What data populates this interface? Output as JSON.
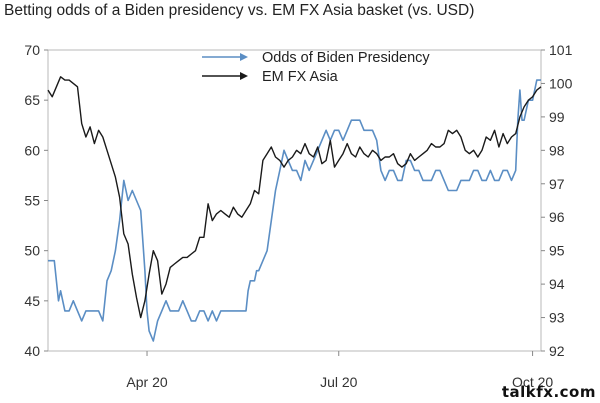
{
  "title": "Betting odds of a Biden presidency vs. EM FX Asia basket (vs. USD)",
  "watermark": "talkfx.com",
  "chart_data": {
    "type": "line",
    "title": "Betting odds of a Biden presidency vs. EM FX Asia basket (vs. USD)",
    "x_ticks": [
      {
        "label": "Apr 20",
        "day": 47
      },
      {
        "label": "Jul 20",
        "day": 138
      },
      {
        "label": "Oct 20",
        "day": 230
      }
    ],
    "x_range_days": [
      0,
      234
    ],
    "y_left": {
      "ticks": [
        40,
        45,
        50,
        55,
        60,
        65,
        70
      ],
      "range": [
        40,
        70
      ]
    },
    "y_right": {
      "ticks": [
        92,
        93,
        94,
        95,
        96,
        97,
        98,
        99,
        100,
        101
      ],
      "range": [
        92,
        101
      ]
    },
    "legend_position": "top-center",
    "series": [
      {
        "name": "Odds of Biden Presidency",
        "axis": "left",
        "color": "#5b8ec4",
        "points": [
          [
            0,
            49
          ],
          [
            3,
            49
          ],
          [
            5,
            45
          ],
          [
            6,
            46
          ],
          [
            8,
            44
          ],
          [
            10,
            44
          ],
          [
            12,
            45
          ],
          [
            14,
            44
          ],
          [
            16,
            43
          ],
          [
            18,
            44
          ],
          [
            20,
            44
          ],
          [
            22,
            44
          ],
          [
            24,
            44
          ],
          [
            26,
            43
          ],
          [
            28,
            47
          ],
          [
            30,
            48
          ],
          [
            32,
            50
          ],
          [
            34,
            53
          ],
          [
            35,
            55
          ],
          [
            36,
            57
          ],
          [
            37,
            56
          ],
          [
            38,
            55
          ],
          [
            40,
            56
          ],
          [
            42,
            55
          ],
          [
            44,
            54
          ],
          [
            45,
            51
          ],
          [
            46,
            48
          ],
          [
            47,
            44
          ],
          [
            48,
            42
          ],
          [
            50,
            41
          ],
          [
            52,
            43
          ],
          [
            54,
            44
          ],
          [
            56,
            45
          ],
          [
            58,
            44
          ],
          [
            60,
            44
          ],
          [
            62,
            44
          ],
          [
            64,
            45
          ],
          [
            66,
            44
          ],
          [
            68,
            43
          ],
          [
            70,
            43
          ],
          [
            72,
            44
          ],
          [
            74,
            44
          ],
          [
            76,
            43
          ],
          [
            78,
            44
          ],
          [
            80,
            43
          ],
          [
            82,
            44
          ],
          [
            84,
            44
          ],
          [
            86,
            44
          ],
          [
            88,
            44
          ],
          [
            90,
            44
          ],
          [
            92,
            44
          ],
          [
            94,
            44
          ],
          [
            95,
            46
          ],
          [
            96,
            47
          ],
          [
            98,
            47
          ],
          [
            99,
            48
          ],
          [
            100,
            48
          ],
          [
            102,
            49
          ],
          [
            104,
            50
          ],
          [
            106,
            53
          ],
          [
            108,
            56
          ],
          [
            110,
            58
          ],
          [
            112,
            60
          ],
          [
            114,
            59
          ],
          [
            116,
            58
          ],
          [
            118,
            58
          ],
          [
            120,
            57
          ],
          [
            122,
            59
          ],
          [
            124,
            58
          ],
          [
            126,
            59
          ],
          [
            128,
            60
          ],
          [
            130,
            61
          ],
          [
            132,
            62
          ],
          [
            134,
            61
          ],
          [
            136,
            62
          ],
          [
            138,
            62
          ],
          [
            140,
            61
          ],
          [
            142,
            62
          ],
          [
            144,
            63
          ],
          [
            146,
            63
          ],
          [
            148,
            63
          ],
          [
            150,
            62
          ],
          [
            152,
            62
          ],
          [
            154,
            62
          ],
          [
            156,
            61
          ],
          [
            158,
            58
          ],
          [
            160,
            57
          ],
          [
            162,
            58
          ],
          [
            164,
            58
          ],
          [
            166,
            57
          ],
          [
            168,
            57
          ],
          [
            170,
            59
          ],
          [
            172,
            59
          ],
          [
            174,
            58
          ],
          [
            176,
            58
          ],
          [
            178,
            57
          ],
          [
            180,
            57
          ],
          [
            182,
            57
          ],
          [
            184,
            58
          ],
          [
            186,
            58
          ],
          [
            188,
            57
          ],
          [
            190,
            56
          ],
          [
            192,
            56
          ],
          [
            194,
            56
          ],
          [
            196,
            57
          ],
          [
            198,
            57
          ],
          [
            200,
            57
          ],
          [
            202,
            58
          ],
          [
            204,
            58
          ],
          [
            206,
            57
          ],
          [
            208,
            57
          ],
          [
            210,
            58
          ],
          [
            212,
            57
          ],
          [
            214,
            57
          ],
          [
            216,
            58
          ],
          [
            218,
            58
          ],
          [
            220,
            57
          ],
          [
            222,
            58
          ],
          [
            223,
            63
          ],
          [
            224,
            66
          ],
          [
            225,
            63
          ],
          [
            226,
            63
          ],
          [
            228,
            65
          ],
          [
            230,
            65
          ],
          [
            232,
            67
          ],
          [
            234,
            67
          ]
        ]
      },
      {
        "name": "EM FX Asia",
        "axis": "right",
        "color": "#1a1a1a",
        "points": [
          [
            0,
            99.8
          ],
          [
            2,
            99.6
          ],
          [
            4,
            99.9
          ],
          [
            6,
            100.2
          ],
          [
            8,
            100.1
          ],
          [
            10,
            100.1
          ],
          [
            12,
            100.0
          ],
          [
            14,
            99.9
          ],
          [
            16,
            98.8
          ],
          [
            18,
            98.4
          ],
          [
            20,
            98.7
          ],
          [
            22,
            98.2
          ],
          [
            24,
            98.6
          ],
          [
            26,
            98.4
          ],
          [
            28,
            98.0
          ],
          [
            30,
            97.6
          ],
          [
            32,
            97.2
          ],
          [
            34,
            96.6
          ],
          [
            36,
            95.5
          ],
          [
            38,
            95.2
          ],
          [
            40,
            94.3
          ],
          [
            42,
            93.6
          ],
          [
            44,
            93.0
          ],
          [
            46,
            93.5
          ],
          [
            48,
            94.3
          ],
          [
            50,
            95.0
          ],
          [
            52,
            94.7
          ],
          [
            54,
            93.7
          ],
          [
            56,
            94.0
          ],
          [
            58,
            94.5
          ],
          [
            60,
            94.6
          ],
          [
            62,
            94.7
          ],
          [
            64,
            94.8
          ],
          [
            66,
            94.8
          ],
          [
            68,
            94.9
          ],
          [
            70,
            95.0
          ],
          [
            72,
            95.4
          ],
          [
            74,
            95.4
          ],
          [
            76,
            96.4
          ],
          [
            78,
            95.9
          ],
          [
            80,
            96.1
          ],
          [
            82,
            96.2
          ],
          [
            84,
            96.1
          ],
          [
            86,
            96.0
          ],
          [
            88,
            96.3
          ],
          [
            90,
            96.1
          ],
          [
            92,
            96.0
          ],
          [
            94,
            96.2
          ],
          [
            96,
            96.4
          ],
          [
            98,
            96.8
          ],
          [
            100,
            96.7
          ],
          [
            102,
            97.7
          ],
          [
            104,
            97.9
          ],
          [
            106,
            98.1
          ],
          [
            108,
            97.8
          ],
          [
            110,
            97.7
          ],
          [
            112,
            97.5
          ],
          [
            114,
            97.7
          ],
          [
            116,
            97.8
          ],
          [
            118,
            98.0
          ],
          [
            120,
            97.9
          ],
          [
            122,
            98.2
          ],
          [
            124,
            97.9
          ],
          [
            126,
            97.8
          ],
          [
            128,
            98.1
          ],
          [
            130,
            97.6
          ],
          [
            132,
            97.7
          ],
          [
            134,
            98.3
          ],
          [
            136,
            97.5
          ],
          [
            138,
            97.7
          ],
          [
            140,
            97.9
          ],
          [
            142,
            98.2
          ],
          [
            144,
            97.9
          ],
          [
            146,
            97.8
          ],
          [
            148,
            98.1
          ],
          [
            150,
            97.9
          ],
          [
            152,
            97.8
          ],
          [
            154,
            98.0
          ],
          [
            156,
            97.9
          ],
          [
            158,
            97.7
          ],
          [
            160,
            97.8
          ],
          [
            162,
            97.8
          ],
          [
            164,
            97.9
          ],
          [
            166,
            97.6
          ],
          [
            168,
            97.5
          ],
          [
            170,
            97.6
          ],
          [
            172,
            97.9
          ],
          [
            174,
            97.7
          ],
          [
            176,
            97.8
          ],
          [
            178,
            97.9
          ],
          [
            180,
            98.0
          ],
          [
            182,
            98.2
          ],
          [
            184,
            98.1
          ],
          [
            186,
            98.1
          ],
          [
            188,
            98.2
          ],
          [
            190,
            98.6
          ],
          [
            192,
            98.5
          ],
          [
            194,
            98.6
          ],
          [
            196,
            98.4
          ],
          [
            198,
            98.0
          ],
          [
            200,
            97.9
          ],
          [
            202,
            98.0
          ],
          [
            204,
            97.8
          ],
          [
            206,
            98.0
          ],
          [
            208,
            98.4
          ],
          [
            210,
            98.3
          ],
          [
            212,
            98.6
          ],
          [
            214,
            98.1
          ],
          [
            216,
            98.5
          ],
          [
            218,
            98.2
          ],
          [
            220,
            98.4
          ],
          [
            222,
            98.5
          ],
          [
            224,
            99.0
          ],
          [
            226,
            99.3
          ],
          [
            228,
            99.5
          ],
          [
            230,
            99.6
          ],
          [
            232,
            99.8
          ],
          [
            234,
            99.9
          ]
        ]
      }
    ]
  }
}
